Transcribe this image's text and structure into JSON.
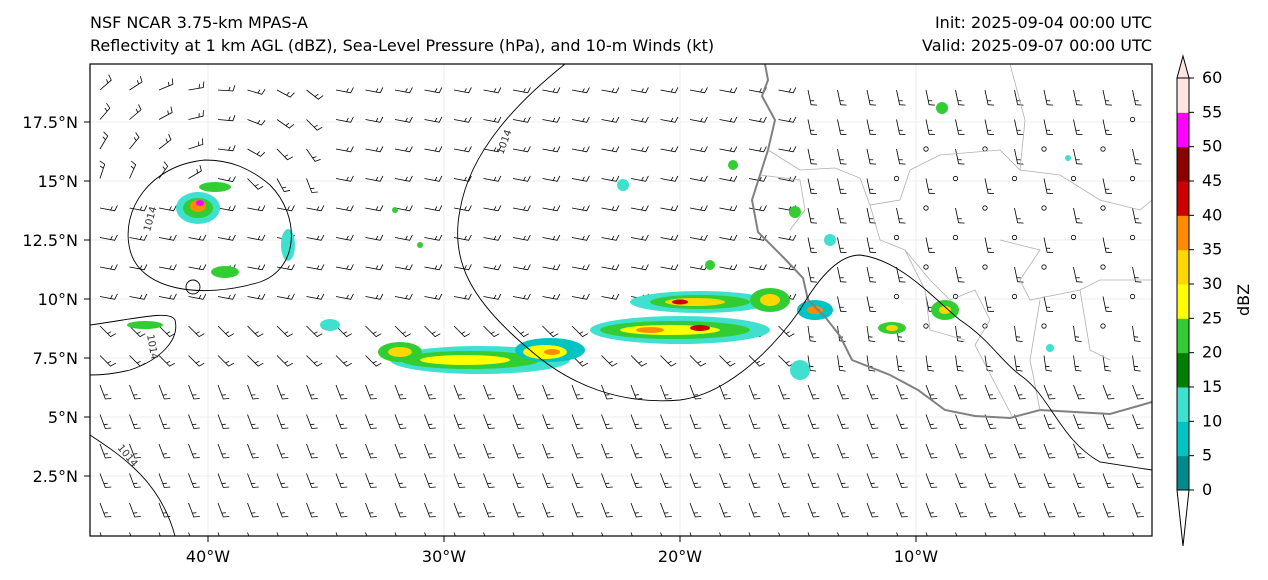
{
  "header": {
    "model": "NSF NCAR 3.75-km MPAS-A",
    "fields": "Reflectivity at 1 km AGL (dBZ), Sea-Level Pressure (hPa), and 10-m Winds (kt)",
    "init": "Init: 2025-09-04 00:00 UTC",
    "valid": "Valid: 2025-09-07 00:00 UTC"
  },
  "axes": {
    "lat_ticks": [
      "17.5°N",
      "15°N",
      "12.5°N",
      "10°N",
      "7.5°N",
      "5°N",
      "2.5°N"
    ],
    "lon_ticks": [
      "40°W",
      "30°W",
      "20°W",
      "10°W"
    ]
  },
  "colorbar": {
    "label": "dBZ",
    "ticks": [
      "0",
      "5",
      "10",
      "15",
      "20",
      "25",
      "30",
      "35",
      "40",
      "45",
      "50",
      "55",
      "60"
    ],
    "colors": [
      "#008b8b",
      "#00c4c4",
      "#40e0d0",
      "#008000",
      "#32cd32",
      "#ffff00",
      "#ffd700",
      "#ff8c00",
      "#cc0000",
      "#8b0000",
      "#ff00ff",
      "#ffe4e1"
    ]
  },
  "isobars": {
    "labels": [
      "1014",
      "1014",
      "1014",
      "1014"
    ]
  },
  "colors": {
    "coast": "#808080",
    "border": "#b0b0b0",
    "isobar": "#000000"
  }
}
